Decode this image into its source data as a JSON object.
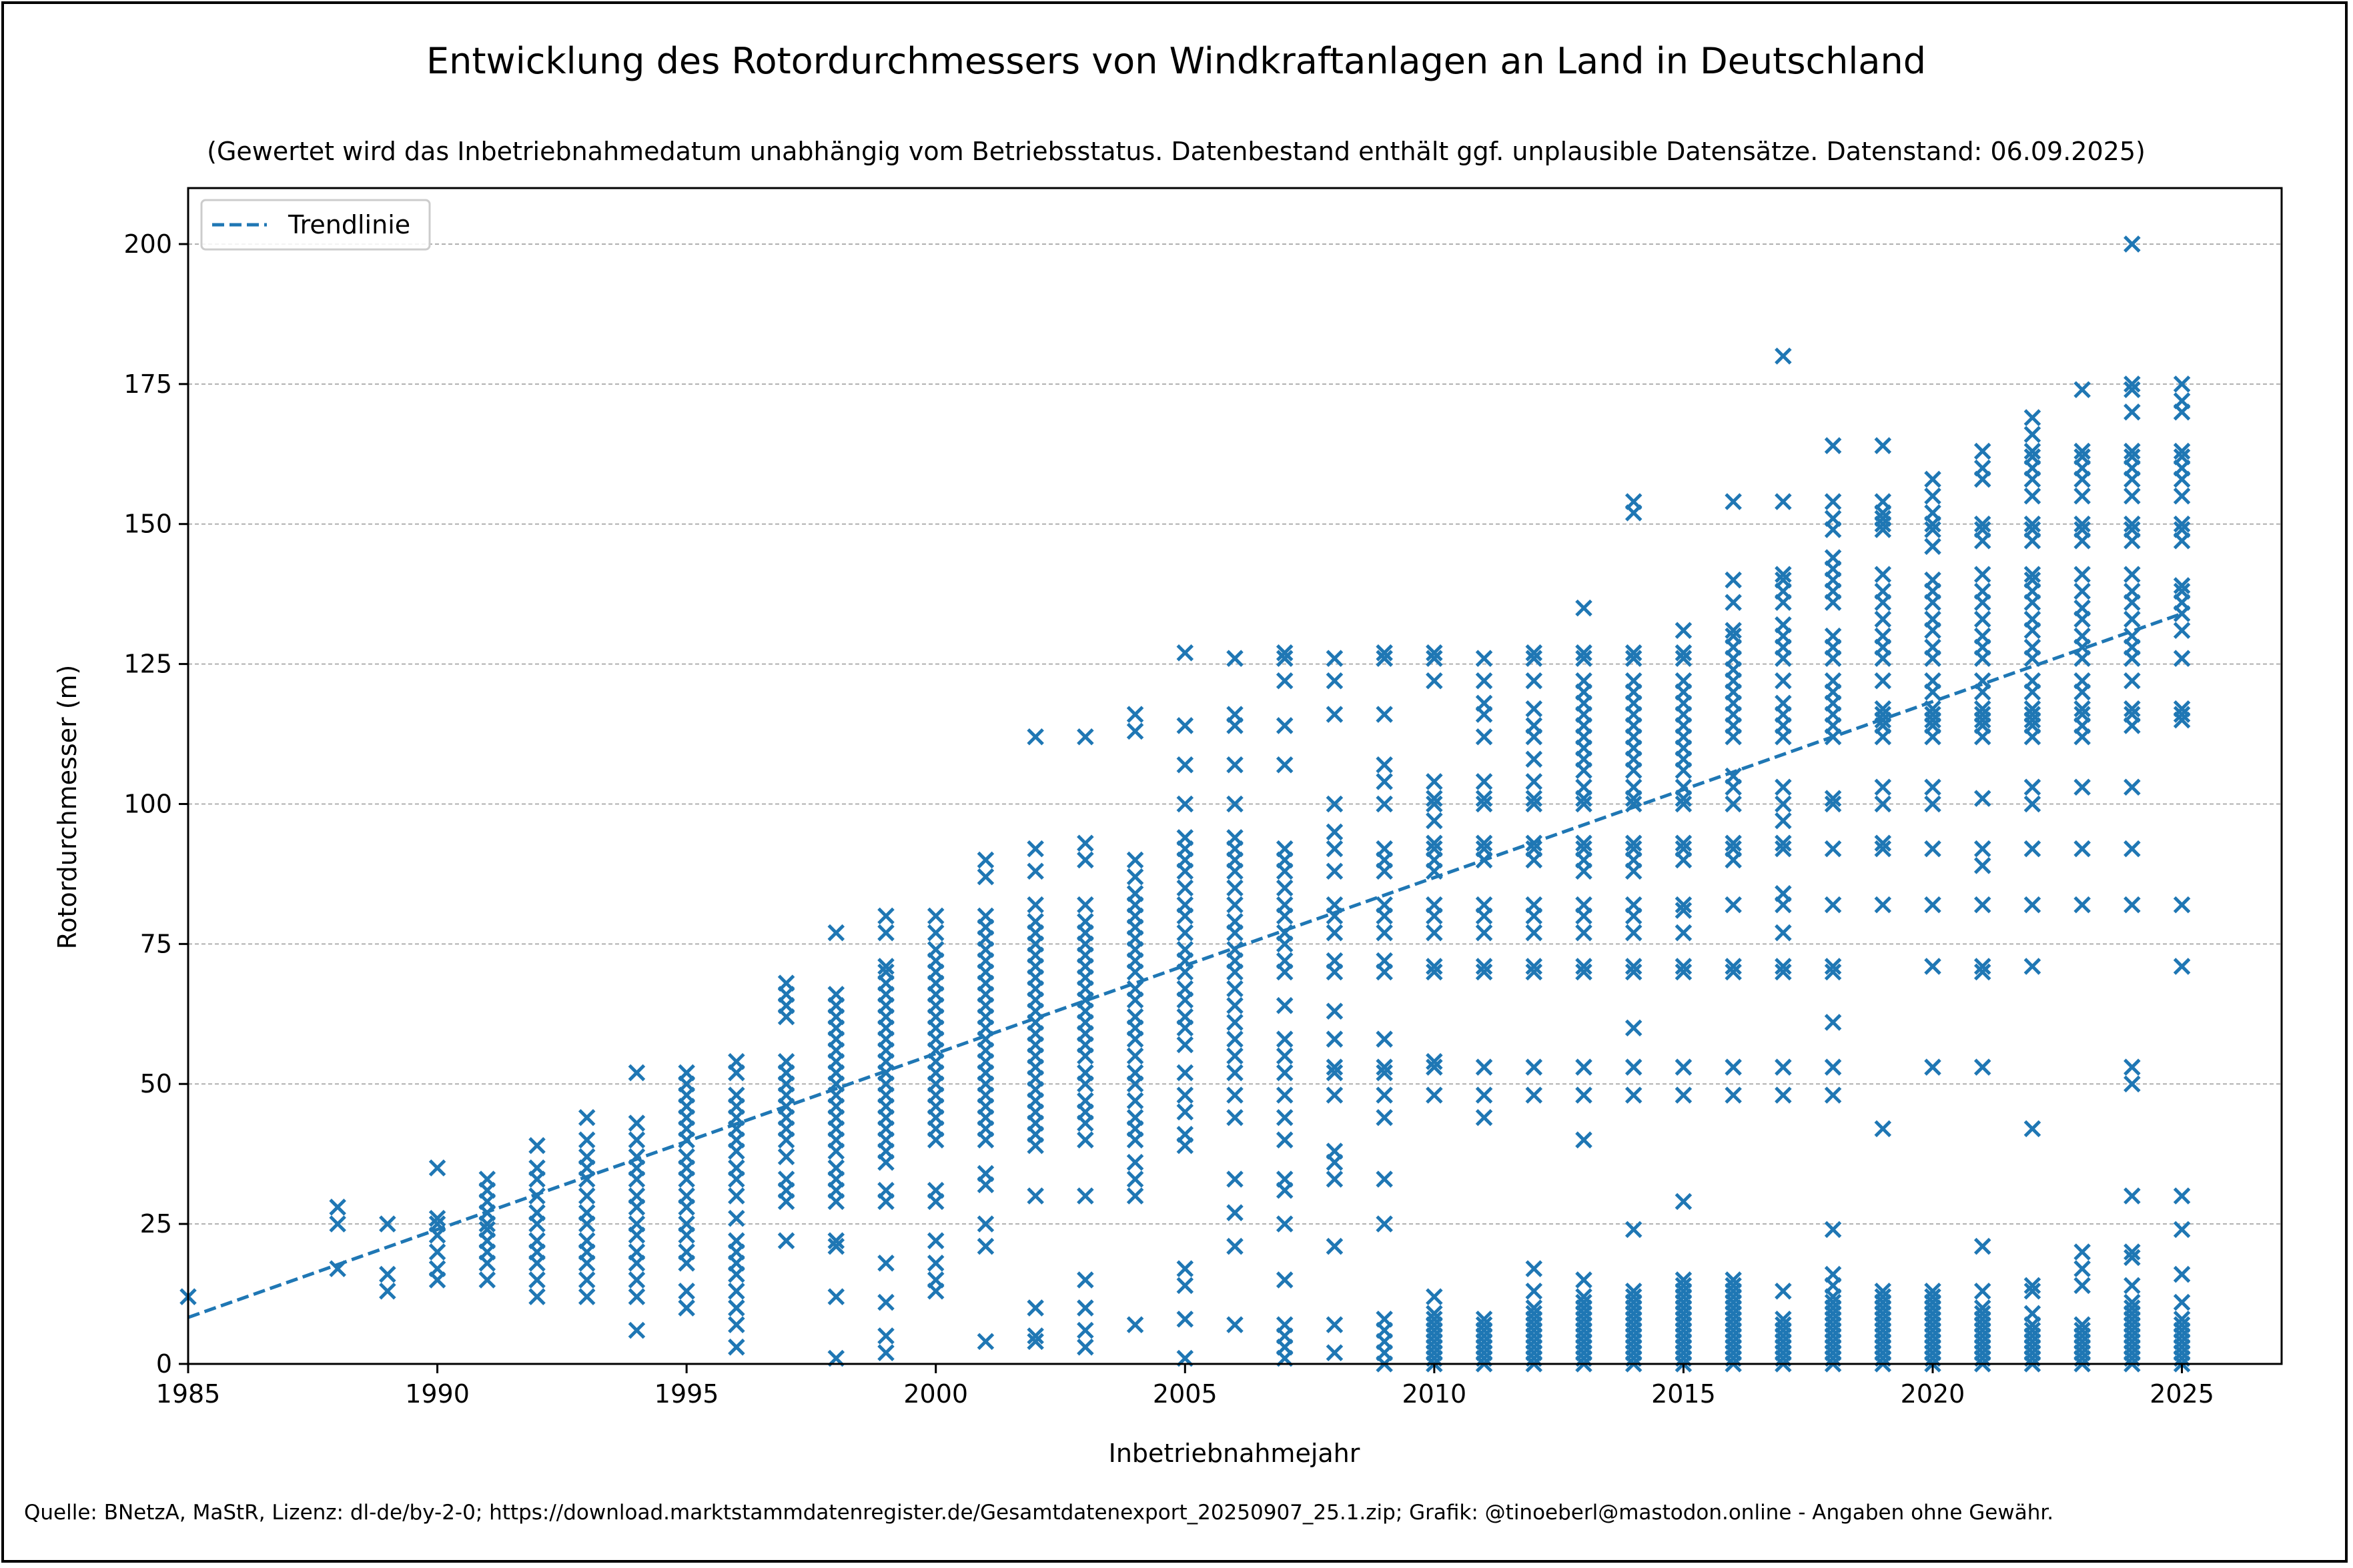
{
  "chart_data": {
    "type": "scatter",
    "title": "Entwicklung des Rotordurchmessers von Windkraftanlagen an Land in Deutschland",
    "subtitle": "(Gewertet wird das Inbetriebnahmedatum unabhängig vom Betriebsstatus. Datenbestand enthält ggf. unplausible Datensätze. Datenstand: 06.09.2025)",
    "xlabel": "Inbetriebnahmejahr",
    "ylabel": "Rotordurchmesser (m)",
    "xlim": [
      1985,
      2027
    ],
    "ylim": [
      0,
      210
    ],
    "xticks": [
      1985,
      1990,
      1995,
      2000,
      2005,
      2010,
      2015,
      2020,
      2025
    ],
    "yticks": [
      0,
      25,
      50,
      75,
      100,
      125,
      150,
      175,
      200
    ],
    "grid": "horizontal dashed",
    "legend": {
      "position": "top-left",
      "entries": [
        "Trendlinie"
      ]
    },
    "marker_color": "#1f77b4",
    "trend": {
      "name": "Trendlinie",
      "x": [
        1985,
        2025
      ],
      "y": [
        8.3,
        134
      ]
    },
    "points_by_year": [
      {
        "x": 1985,
        "y": [
          12
        ]
      },
      {
        "x": 1988,
        "y": [
          17,
          25,
          28
        ]
      },
      {
        "x": 1989,
        "y": [
          13,
          16,
          25
        ]
      },
      {
        "x": 1990,
        "y": [
          15,
          17,
          20,
          23,
          25,
          26,
          35
        ]
      },
      {
        "x": 1991,
        "y": [
          15,
          18,
          20,
          22,
          24,
          25,
          27,
          29,
          31,
          33
        ]
      },
      {
        "x": 1992,
        "y": [
          12,
          15,
          18,
          20,
          22,
          25,
          27,
          30,
          33,
          35,
          39
        ]
      },
      {
        "x": 1993,
        "y": [
          12,
          15,
          18,
          20,
          22,
          25,
          27,
          30,
          33,
          35,
          37,
          40,
          44
        ]
      },
      {
        "x": 1994,
        "y": [
          6,
          12,
          15,
          18,
          20,
          23,
          25,
          28,
          30,
          33,
          35,
          37,
          40,
          43,
          52
        ]
      },
      {
        "x": 1995,
        "y": [
          10,
          13,
          18,
          20,
          23,
          25,
          28,
          30,
          33,
          35,
          37,
          40,
          42,
          44,
          46,
          48,
          50,
          52
        ]
      },
      {
        "x": 1996,
        "y": [
          3,
          7,
          10,
          13,
          16,
          18,
          20,
          22,
          26,
          30,
          33,
          35,
          38,
          40,
          42,
          44,
          46,
          48,
          52,
          54
        ]
      },
      {
        "x": 1997,
        "y": [
          22,
          29,
          31,
          33,
          37,
          40,
          42,
          44,
          46,
          48,
          50,
          52,
          54,
          62,
          64,
          66,
          68
        ]
      },
      {
        "x": 1998,
        "y": [
          1,
          12,
          21,
          22,
          29,
          31,
          33,
          35,
          38,
          40,
          42,
          44,
          46,
          48,
          50,
          52,
          54,
          56,
          58,
          60,
          62,
          64,
          66,
          77
        ]
      },
      {
        "x": 1999,
        "y": [
          2,
          5,
          11,
          18,
          29,
          31,
          36,
          38,
          40,
          42,
          44,
          46,
          48,
          50,
          52,
          54,
          56,
          58,
          60,
          62,
          64,
          66,
          68,
          70,
          71,
          77,
          80
        ]
      },
      {
        "x": 2000,
        "y": [
          13,
          15,
          18,
          22,
          29,
          31,
          40,
          42,
          44,
          46,
          48,
          50,
          52,
          54,
          56,
          58,
          60,
          62,
          64,
          66,
          68,
          70,
          72,
          74,
          77,
          80
        ]
      },
      {
        "x": 2001,
        "y": [
          4,
          21,
          25,
          32,
          34,
          40,
          42,
          44,
          46,
          48,
          50,
          52,
          54,
          56,
          58,
          60,
          62,
          64,
          66,
          68,
          70,
          72,
          74,
          76,
          78,
          80,
          87,
          90
        ]
      },
      {
        "x": 2002,
        "y": [
          4,
          5,
          10,
          30,
          39,
          41,
          43,
          45,
          47,
          49,
          51,
          53,
          55,
          57,
          59,
          61,
          63,
          65,
          67,
          69,
          71,
          73,
          75,
          77,
          79,
          82,
          88,
          92,
          112
        ]
      },
      {
        "x": 2003,
        "y": [
          3,
          6,
          10,
          15,
          30,
          40,
          43,
          45,
          47,
          50,
          52,
          55,
          57,
          59,
          61,
          63,
          65,
          67,
          69,
          71,
          73,
          75,
          77,
          79,
          82,
          90,
          93,
          112
        ]
      },
      {
        "x": 2004,
        "y": [
          7,
          30,
          33,
          36,
          40,
          42,
          44,
          47,
          50,
          52,
          55,
          58,
          60,
          62,
          65,
          67,
          70,
          72,
          74,
          76,
          78,
          80,
          82,
          84,
          87,
          90,
          113,
          116
        ]
      },
      {
        "x": 2005,
        "y": [
          1,
          8,
          14,
          17,
          39,
          41,
          45,
          48,
          52,
          57,
          60,
          62,
          65,
          67,
          70,
          72,
          74,
          77,
          80,
          82,
          85,
          88,
          90,
          92,
          94,
          100,
          107,
          114,
          127
        ]
      },
      {
        "x": 2006,
        "y": [
          7,
          21,
          27,
          33,
          44,
          48,
          52,
          55,
          58,
          61,
          64,
          67,
          70,
          72,
          74,
          77,
          79,
          82,
          85,
          88,
          90,
          92,
          94,
          100,
          107,
          114,
          116,
          126
        ]
      },
      {
        "x": 2007,
        "y": [
          1,
          3,
          5,
          7,
          15,
          25,
          31,
          33,
          40,
          44,
          48,
          52,
          55,
          58,
          64,
          70,
          72,
          75,
          77,
          80,
          82,
          85,
          88,
          90,
          92,
          107,
          114,
          122,
          126,
          127
        ]
      },
      {
        "x": 2008,
        "y": [
          2,
          7,
          21,
          33,
          36,
          38,
          48,
          52,
          53,
          58,
          63,
          70,
          72,
          77,
          80,
          82,
          88,
          92,
          95,
          100,
          116,
          122,
          126
        ]
      },
      {
        "x": 2009,
        "y": [
          0,
          2,
          4,
          6,
          8,
          25,
          33,
          44,
          48,
          52,
          53,
          58,
          70,
          72,
          77,
          80,
          82,
          88,
          90,
          92,
          100,
          104,
          107,
          116,
          126,
          127
        ]
      },
      {
        "x": 2010,
        "y": [
          0,
          1,
          2,
          3,
          4,
          5,
          6,
          7,
          8,
          9,
          12,
          48,
          53,
          54,
          70,
          71,
          77,
          80,
          82,
          88,
          90,
          92,
          93,
          97,
          100,
          101,
          104,
          122,
          126,
          127
        ]
      },
      {
        "x": 2011,
        "y": [
          0,
          1,
          2,
          3,
          4,
          5,
          6,
          7,
          8,
          44,
          48,
          53,
          70,
          71,
          77,
          80,
          82,
          90,
          92,
          93,
          100,
          101,
          104,
          112,
          116,
          118,
          122,
          126
        ]
      },
      {
        "x": 2012,
        "y": [
          0,
          1,
          2,
          3,
          4,
          5,
          6,
          7,
          8,
          9,
          10,
          13,
          17,
          48,
          53,
          70,
          71,
          77,
          80,
          82,
          90,
          92,
          93,
          100,
          101,
          104,
          108,
          112,
          114,
          117,
          122,
          126,
          127
        ]
      },
      {
        "x": 2013,
        "y": [
          0,
          1,
          2,
          3,
          4,
          5,
          6,
          7,
          8,
          9,
          10,
          11,
          12,
          15,
          40,
          48,
          53,
          70,
          71,
          77,
          80,
          82,
          88,
          90,
          92,
          93,
          100,
          101,
          103,
          106,
          108,
          110,
          112,
          114,
          116,
          118,
          120,
          122,
          126,
          127,
          135
        ]
      },
      {
        "x": 2014,
        "y": [
          0,
          1,
          2,
          3,
          4,
          5,
          6,
          7,
          8,
          9,
          10,
          11,
          12,
          13,
          24,
          48,
          53,
          60,
          70,
          71,
          77,
          80,
          82,
          88,
          90,
          92,
          93,
          100,
          101,
          103,
          106,
          108,
          110,
          112,
          114,
          116,
          118,
          120,
          122,
          126,
          127,
          152,
          154
        ]
      },
      {
        "x": 2015,
        "y": [
          0,
          1,
          2,
          3,
          4,
          5,
          6,
          7,
          8,
          9,
          10,
          11,
          12,
          13,
          14,
          15,
          29,
          48,
          53,
          70,
          71,
          77,
          81,
          82,
          90,
          92,
          93,
          100,
          101,
          103,
          106,
          108,
          110,
          112,
          114,
          116,
          118,
          120,
          122,
          126,
          127,
          131
        ]
      },
      {
        "x": 2016,
        "y": [
          0,
          1,
          2,
          3,
          4,
          5,
          6,
          7,
          8,
          9,
          10,
          11,
          12,
          13,
          14,
          15,
          48,
          53,
          70,
          71,
          82,
          90,
          92,
          93,
          100,
          103,
          105,
          112,
          114,
          116,
          118,
          120,
          122,
          124,
          126,
          128,
          130,
          131,
          136,
          140,
          154
        ]
      },
      {
        "x": 2017,
        "y": [
          0,
          1,
          2,
          3,
          4,
          5,
          6,
          7,
          8,
          13,
          48,
          53,
          70,
          71,
          77,
          82,
          84,
          92,
          93,
          97,
          100,
          103,
          112,
          114,
          116,
          118,
          122,
          126,
          128,
          130,
          132,
          136,
          138,
          140,
          141,
          154,
          180
        ]
      },
      {
        "x": 2018,
        "y": [
          0,
          1,
          2,
          3,
          4,
          5,
          6,
          7,
          8,
          9,
          10,
          11,
          12,
          14,
          16,
          24,
          48,
          53,
          61,
          70,
          71,
          82,
          92,
          100,
          101,
          112,
          114,
          116,
          118,
          120,
          122,
          126,
          128,
          130,
          136,
          138,
          140,
          142,
          144,
          149,
          151,
          154,
          164
        ]
      },
      {
        "x": 2019,
        "y": [
          0,
          1,
          2,
          3,
          4,
          5,
          6,
          7,
          8,
          9,
          10,
          11,
          12,
          13,
          42,
          82,
          92,
          93,
          100,
          103,
          112,
          114,
          115,
          116,
          117,
          122,
          126,
          128,
          130,
          133,
          136,
          138,
          141,
          149,
          150,
          151,
          152,
          154,
          164
        ]
      },
      {
        "x": 2020,
        "y": [
          0,
          1,
          2,
          3,
          4,
          5,
          6,
          7,
          8,
          9,
          10,
          11,
          12,
          13,
          53,
          71,
          82,
          92,
          100,
          103,
          112,
          114,
          115,
          116,
          117,
          120,
          122,
          126,
          128,
          131,
          133,
          136,
          138,
          140,
          146,
          149,
          150,
          152,
          155,
          158
        ]
      },
      {
        "x": 2021,
        "y": [
          0,
          1,
          2,
          3,
          4,
          5,
          6,
          7,
          8,
          9,
          10,
          13,
          21,
          53,
          70,
          71,
          82,
          89,
          92,
          101,
          112,
          114,
          115,
          116,
          117,
          120,
          122,
          126,
          128,
          130,
          133,
          136,
          138,
          141,
          147,
          149,
          150,
          158,
          160,
          163
        ]
      },
      {
        "x": 2022,
        "y": [
          0,
          1,
          2,
          3,
          4,
          5,
          6,
          7,
          9,
          13,
          14,
          42,
          71,
          82,
          92,
          100,
          103,
          112,
          114,
          115,
          116,
          117,
          120,
          122,
          126,
          128,
          131,
          133,
          136,
          138,
          140,
          141,
          147,
          149,
          150,
          155,
          158,
          160,
          162,
          163,
          166,
          169
        ]
      },
      {
        "x": 2023,
        "y": [
          0,
          1,
          2,
          3,
          4,
          5,
          6,
          7,
          14,
          17,
          20,
          82,
          92,
          103,
          112,
          114,
          116,
          117,
          120,
          122,
          126,
          128,
          130,
          133,
          135,
          138,
          141,
          147,
          149,
          150,
          155,
          158,
          160,
          162,
          163,
          174
        ]
      },
      {
        "x": 2024,
        "y": [
          0,
          1,
          2,
          3,
          4,
          5,
          6,
          7,
          8,
          9,
          10,
          11,
          14,
          19,
          20,
          30,
          50,
          53,
          82,
          92,
          103,
          114,
          116,
          117,
          122,
          126,
          128,
          130,
          133,
          136,
          138,
          141,
          147,
          149,
          150,
          155,
          158,
          160,
          162,
          163,
          170,
          174,
          175,
          200
        ]
      },
      {
        "x": 2025,
        "y": [
          0,
          1,
          2,
          3,
          4,
          5,
          6,
          7,
          8,
          11,
          16,
          24,
          30,
          71,
          82,
          115,
          116,
          117,
          126,
          131,
          134,
          136,
          138,
          139,
          147,
          149,
          150,
          155,
          158,
          160,
          162,
          163,
          170,
          172,
          175
        ]
      }
    ]
  },
  "footer": {
    "source": "Quelle: BNetzA, MaStR, Lizenz: dl-de/by-2-0; https://download.marktstammdatenregister.de/Gesamtdatenexport_20250907_25.1.zip; Grafik: @tinoeberl@mastodon.online - Angaben ohne Gewähr."
  }
}
